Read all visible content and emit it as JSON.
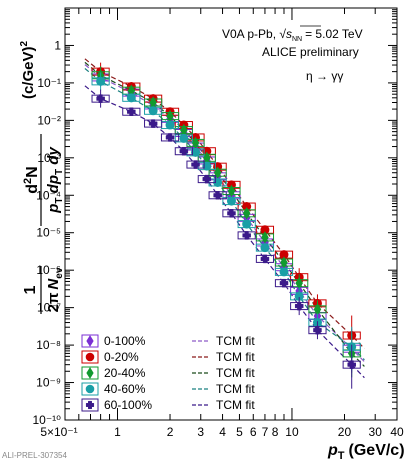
{
  "chart_data": {
    "type": "scatter",
    "title": "",
    "annotations": {
      "system_line_main": "V0A p-Pb, ",
      "system_line_energy": "= 5.02 TeV",
      "sqrt_label": "s",
      "sqrt_sub": "NN",
      "collab_label": "ALICE preliminary",
      "decay_label": "η → γγ",
      "watermark": "ALI-PREL-307354"
    },
    "xaxis": {
      "label_main": "p",
      "label_sub": "T",
      "label_unit": "(GeV/c)",
      "scale": "log",
      "range": [
        0.5,
        40
      ],
      "tick_labels": [
        {
          "value": 0.5,
          "text": "5×10⁻¹"
        },
        {
          "value": 1,
          "text": "1"
        },
        {
          "value": 2,
          "text": "2"
        },
        {
          "value": 3,
          "text": "3"
        },
        {
          "value": 4,
          "text": "4"
        },
        {
          "value": 5,
          "text": "5"
        },
        {
          "value": 6,
          "text": "6"
        },
        {
          "value": 7,
          "text": "7"
        },
        {
          "value": 8,
          "text": "8"
        },
        {
          "value": 10,
          "text": "10"
        },
        {
          "value": 20,
          "text": "20"
        },
        {
          "value": 30,
          "text": "30"
        },
        {
          "value": 40,
          "text": "40"
        }
      ]
    },
    "yaxis": {
      "label_parts": {
        "one": "1",
        "twopi": "2π",
        "nev": "N",
        "nev_sub": "ev",
        "numer": "d",
        "numer_sup": "2",
        "numer_n": "N",
        "denom": "p",
        "denom_sub": "T",
        "denom_rest": " dp",
        "denom_sub2": "T",
        "denom_dy": " dy",
        "unit": "(c/GeV)",
        "unit_sup": "2"
      },
      "scale": "log",
      "range": [
        1e-10,
        10
      ],
      "tick_labels": [
        {
          "exp": 0,
          "text": "1"
        },
        {
          "exp": -1,
          "text": "10⁻¹"
        },
        {
          "exp": -2,
          "text": "10⁻²"
        },
        {
          "exp": -3,
          "text": "10⁻³"
        },
        {
          "exp": -4,
          "text": "10⁻⁴"
        },
        {
          "exp": -5,
          "text": "10⁻⁵"
        },
        {
          "exp": -6,
          "text": "10⁻⁶"
        },
        {
          "exp": -7,
          "text": "10⁻⁷"
        },
        {
          "exp": -8,
          "text": "10⁻⁸"
        },
        {
          "exp": -9,
          "text": "10⁻⁹"
        },
        {
          "exp": -10,
          "text": "10⁻¹⁰"
        }
      ]
    },
    "x": [
      0.8,
      1.2,
      1.6,
      2.0,
      2.4,
      2.8,
      3.25,
      3.75,
      4.5,
      5.5,
      7.0,
      9.0,
      11.0,
      14.0,
      22.0
    ],
    "series": [
      {
        "name": "0-100%",
        "color": "#7b2fd4",
        "marker": "diamond",
        "y": [
          0.14,
          0.055,
          0.025,
          0.011,
          0.0046,
          0.002,
          0.00085,
          0.00032,
          0.0001,
          2.5e-05,
          5.5e-06,
          1.2e-06,
          2.8e-07,
          6e-08,
          8e-09
        ]
      },
      {
        "name": "0-20%",
        "color": "#cc0000",
        "marker": "circle",
        "y": [
          0.2,
          0.08,
          0.038,
          0.017,
          0.0075,
          0.0035,
          0.0015,
          0.00058,
          0.00019,
          5e-05,
          1.2e-05,
          2.6e-06,
          6.5e-07,
          1.3e-07,
          1.8e-08
        ]
      },
      {
        "name": "20-40%",
        "color": "#129a2f",
        "marker": "diamond",
        "y": [
          0.16,
          0.062,
          0.03,
          0.013,
          0.0055,
          0.0025,
          0.001,
          0.0004,
          0.00013,
          3.3e-05,
          7.5e-06,
          1.6e-06,
          4.5e-07,
          9e-08,
          6e-09
        ]
      },
      {
        "name": "40-60%",
        "color": "#1a9fa6",
        "marker": "circle",
        "y": [
          0.11,
          0.04,
          0.018,
          0.0075,
          0.0033,
          0.0014,
          0.0006,
          0.00022,
          7e-05,
          1.7e-05,
          4e-06,
          9e-07,
          2e-07,
          4e-08,
          9e-09
        ]
      },
      {
        "name": "60-100%",
        "color": "#3b1a8a",
        "marker": "cross",
        "y": [
          0.038,
          0.017,
          0.0082,
          0.0035,
          0.0015,
          0.00066,
          0.00027,
          0.0001,
          3.3e-05,
          8.5e-06,
          2e-06,
          4.5e-07,
          1.1e-07,
          2.5e-08,
          3e-09
        ]
      }
    ],
    "fit_curves": [
      {
        "name": "TCM fit",
        "color": "#8e5ac8",
        "series": "0-100%"
      },
      {
        "name": "TCM fit",
        "color": "#8b1a1a",
        "series": "0-20%"
      },
      {
        "name": "TCM fit",
        "color": "#1a4a1a",
        "series": "20-40%"
      },
      {
        "name": "TCM fit",
        "color": "#1a8080",
        "series": "40-60%"
      },
      {
        "name": "TCM fit",
        "color": "#3b1a8a",
        "series": "60-100%"
      }
    ],
    "legend_placement": "bottom-left"
  }
}
